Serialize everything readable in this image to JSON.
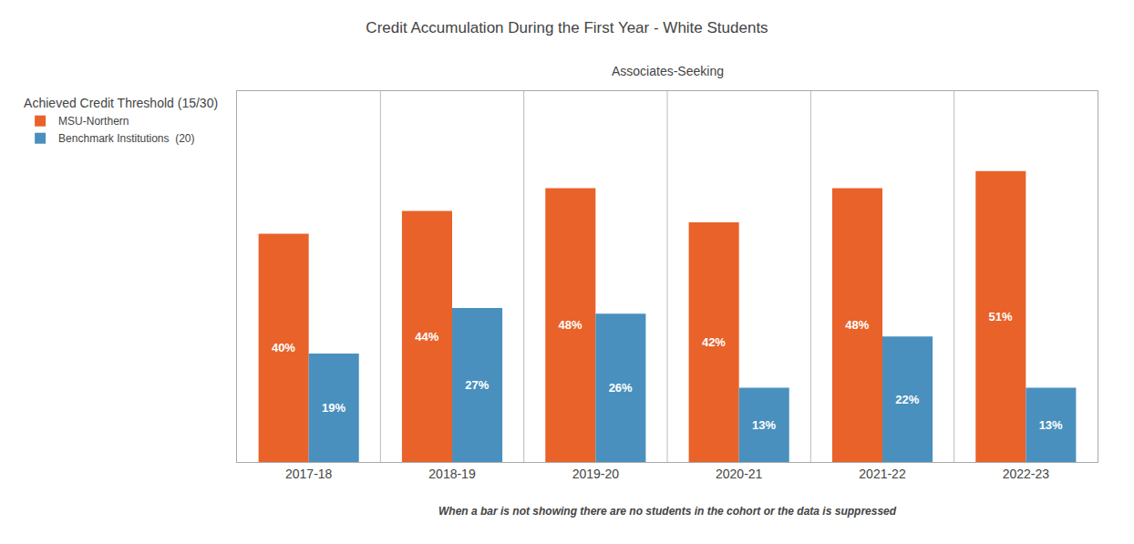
{
  "chart_data": {
    "type": "bar",
    "title": "Credit Accumulation During the First Year - White Students",
    "subtitle": "Associates-Seeking",
    "legend_title": "Achieved Credit Threshold (15/30)",
    "footnote": "When a bar is not showing there are no students in the cohort or the data is suppressed",
    "categories": [
      "2017-18",
      "2018-19",
      "2019-20",
      "2020-21",
      "2021-22",
      "2022-23"
    ],
    "series": [
      {
        "name": "MSU-Northern",
        "color": "#E8622A",
        "values": [
          40,
          44,
          48,
          42,
          48,
          51
        ],
        "value_labels": [
          "40%",
          "44%",
          "48%",
          "42%",
          "48%",
          "51%"
        ]
      },
      {
        "name": "Benchmark Institutions  (20)",
        "color": "#4A90BE",
        "values": [
          19,
          27,
          26,
          13,
          22,
          13
        ],
        "value_labels": [
          "19%",
          "27%",
          "26%",
          "13%",
          "22%",
          "13%"
        ]
      }
    ],
    "ylim": [
      0,
      65
    ],
    "grid": false,
    "legend": "left",
    "data_labels": true,
    "tick_labels": "x"
  }
}
